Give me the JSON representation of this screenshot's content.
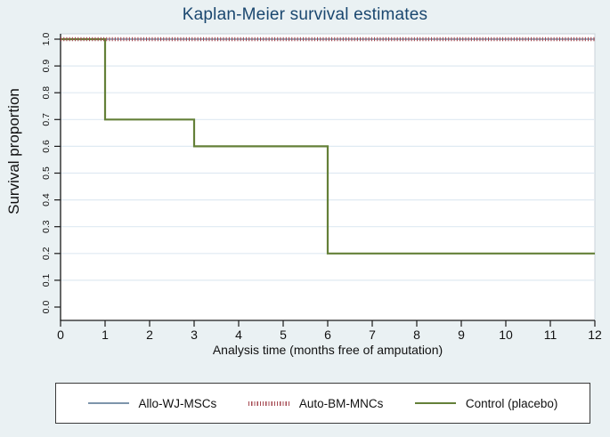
{
  "title": "Kaplan-Meier survival estimates",
  "colors": {
    "background": "#eaf1f3",
    "title": "#1a476f",
    "plot_background": "#ffffff",
    "plot_border": "#c9d2d8",
    "grid": "#dfeaf2",
    "axis": "#1a1a1a",
    "allo_blue": "#7d95ab",
    "auto_red": "#a64a52",
    "control_green": "#648038"
  },
  "chart_data": {
    "type": "line",
    "subtype": "kaplan-meier-step",
    "title": "Kaplan-Meier survival estimates",
    "xlabel": "Analysis time (months free of amputation)",
    "ylabel": "Survival proportion",
    "xlim": [
      0,
      12
    ],
    "ylim": [
      0.0,
      1.0
    ],
    "xticks": [
      0,
      1,
      2,
      3,
      4,
      5,
      6,
      7,
      8,
      9,
      10,
      11,
      12
    ],
    "yticks": [
      "0.0",
      "0.1",
      "0.2",
      "0.3",
      "0.4",
      "0.5",
      "0.6",
      "0.7",
      "0.8",
      "0.9",
      "1.0"
    ],
    "grid": "horizontal",
    "legend_position": "bottom",
    "series": [
      {
        "name": "Allo-WJ-MSCs",
        "color": "#7d95ab",
        "line_style": "solid",
        "width": 1.6,
        "points": [
          [
            0,
            1.0
          ],
          [
            12,
            1.0
          ]
        ]
      },
      {
        "name": "Auto-BM-MNCs",
        "color": "#a64a52",
        "line_style": "dense-dotted",
        "width": 4.5,
        "points": [
          [
            0,
            1.0
          ],
          [
            12,
            1.0
          ]
        ]
      },
      {
        "name": "Control (placebo)",
        "color": "#648038",
        "line_style": "solid",
        "width": 2.2,
        "points": [
          [
            0,
            1.0
          ],
          [
            1,
            1.0
          ],
          [
            1,
            0.7
          ],
          [
            3,
            0.7
          ],
          [
            3,
            0.6
          ],
          [
            6,
            0.6
          ],
          [
            6,
            0.2
          ],
          [
            12,
            0.2
          ]
        ]
      }
    ]
  }
}
